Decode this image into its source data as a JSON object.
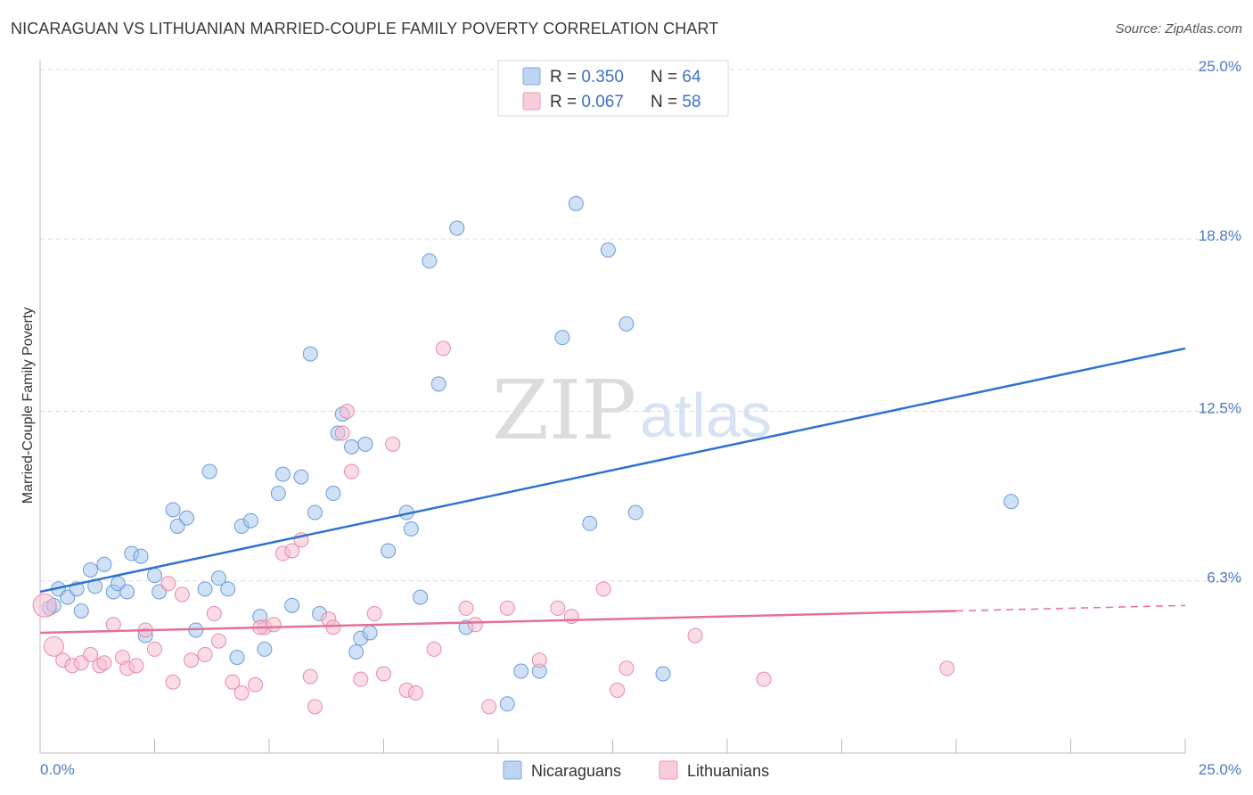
{
  "title": "NICARAGUAN VS LITHUANIAN MARRIED-COUPLE FAMILY POVERTY CORRELATION CHART",
  "source": "Source: ZipAtlas.com",
  "watermark": {
    "zip": "ZIP",
    "atlas": "atlas"
  },
  "chart_data": {
    "type": "scatter",
    "ylabel": "Married-Couple Family Poverty",
    "xlim": [
      0,
      25
    ],
    "ylim": [
      0,
      25
    ],
    "x_tick_labels": [
      "0.0%",
      "25.0%"
    ],
    "y_ticks": [
      6.3,
      12.5,
      18.8,
      25.0
    ],
    "y_tick_labels": [
      "6.3%",
      "12.5%",
      "18.8%",
      "25.0%"
    ],
    "grid": "horizontal dashed",
    "legend_placement": "top-center",
    "stats_legend": [
      {
        "r_label": "R = ",
        "r_value": "0.350",
        "n_label": "N = ",
        "n_value": "64"
      },
      {
        "r_label": "R = ",
        "r_value": "0.067",
        "n_label": "N = ",
        "n_value": "58"
      }
    ],
    "series": [
      {
        "name": "Nicaraguans",
        "color": "#a9c8ee",
        "stroke": "#6b9bd6",
        "line_color": "#2f72d0",
        "trend": {
          "x": [
            0,
            25
          ],
          "y": [
            5.9,
            14.8
          ],
          "dashed_from": null
        },
        "points": [
          [
            0.2,
            5.3
          ],
          [
            0.3,
            5.4
          ],
          [
            0.4,
            6.0
          ],
          [
            0.6,
            5.7
          ],
          [
            0.8,
            6.0
          ],
          [
            0.9,
            5.2
          ],
          [
            1.1,
            6.7
          ],
          [
            1.2,
            6.1
          ],
          [
            1.4,
            6.9
          ],
          [
            1.6,
            5.9
          ],
          [
            1.7,
            6.2
          ],
          [
            1.9,
            5.9
          ],
          [
            2.0,
            7.3
          ],
          [
            2.2,
            7.2
          ],
          [
            2.3,
            4.3
          ],
          [
            2.5,
            6.5
          ],
          [
            2.6,
            5.9
          ],
          [
            2.9,
            8.9
          ],
          [
            3.0,
            8.3
          ],
          [
            3.2,
            8.6
          ],
          [
            3.4,
            4.5
          ],
          [
            3.6,
            6.0
          ],
          [
            3.7,
            10.3
          ],
          [
            3.9,
            6.4
          ],
          [
            4.1,
            6.0
          ],
          [
            4.3,
            3.5
          ],
          [
            4.4,
            8.3
          ],
          [
            4.6,
            8.5
          ],
          [
            4.8,
            5.0
          ],
          [
            4.9,
            3.8
          ],
          [
            5.2,
            9.5
          ],
          [
            5.3,
            10.2
          ],
          [
            5.5,
            5.4
          ],
          [
            5.7,
            10.1
          ],
          [
            5.9,
            14.6
          ],
          [
            6.0,
            8.8
          ],
          [
            6.1,
            5.1
          ],
          [
            6.4,
            9.5
          ],
          [
            6.5,
            11.7
          ],
          [
            6.6,
            12.4
          ],
          [
            6.8,
            11.2
          ],
          [
            6.9,
            3.7
          ],
          [
            7.0,
            4.2
          ],
          [
            7.1,
            11.3
          ],
          [
            7.2,
            4.4
          ],
          [
            7.6,
            7.4
          ],
          [
            8.0,
            8.8
          ],
          [
            8.1,
            8.2
          ],
          [
            8.3,
            5.7
          ],
          [
            8.5,
            18.0
          ],
          [
            8.7,
            13.5
          ],
          [
            9.1,
            19.2
          ],
          [
            9.3,
            4.6
          ],
          [
            10.2,
            1.8
          ],
          [
            10.5,
            3.0
          ],
          [
            10.9,
            3.0
          ],
          [
            11.4,
            15.2
          ],
          [
            11.7,
            20.1
          ],
          [
            12.0,
            8.4
          ],
          [
            12.4,
            18.4
          ],
          [
            12.8,
            15.7
          ],
          [
            13.0,
            8.8
          ],
          [
            13.6,
            2.9
          ],
          [
            21.2,
            9.2
          ]
        ]
      },
      {
        "name": "Lithuanians",
        "color": "#f7bfd0",
        "stroke": "#e68aa8",
        "line_color": "#e4709a",
        "trend": {
          "x": [
            0,
            25
          ],
          "y": [
            4.4,
            5.4
          ],
          "dashed_from": 20.0
        },
        "points": [
          [
            0.1,
            5.4
          ],
          [
            0.3,
            3.9
          ],
          [
            0.5,
            3.4
          ],
          [
            0.7,
            3.2
          ],
          [
            0.9,
            3.3
          ],
          [
            1.1,
            3.6
          ],
          [
            1.3,
            3.2
          ],
          [
            1.4,
            3.3
          ],
          [
            1.6,
            4.7
          ],
          [
            1.8,
            3.5
          ],
          [
            1.9,
            3.1
          ],
          [
            2.1,
            3.2
          ],
          [
            2.3,
            4.5
          ],
          [
            2.5,
            3.8
          ],
          [
            2.8,
            6.2
          ],
          [
            2.9,
            2.6
          ],
          [
            3.1,
            5.8
          ],
          [
            3.3,
            3.4
          ],
          [
            3.6,
            3.6
          ],
          [
            3.8,
            5.1
          ],
          [
            3.9,
            4.1
          ],
          [
            4.2,
            2.6
          ],
          [
            4.4,
            2.2
          ],
          [
            4.7,
            2.5
          ],
          [
            4.9,
            4.6
          ],
          [
            5.1,
            4.7
          ],
          [
            5.3,
            7.3
          ],
          [
            5.5,
            7.4
          ],
          [
            5.7,
            7.8
          ],
          [
            5.9,
            2.8
          ],
          [
            6.0,
            1.7
          ],
          [
            6.3,
            4.9
          ],
          [
            6.4,
            4.6
          ],
          [
            6.7,
            12.5
          ],
          [
            6.8,
            10.3
          ],
          [
            7.0,
            2.7
          ],
          [
            7.3,
            5.1
          ],
          [
            7.5,
            2.9
          ],
          [
            7.7,
            11.3
          ],
          [
            8.0,
            2.3
          ],
          [
            8.2,
            2.2
          ],
          [
            8.6,
            3.8
          ],
          [
            8.8,
            14.8
          ],
          [
            9.3,
            5.3
          ],
          [
            9.5,
            4.7
          ],
          [
            9.8,
            1.7
          ],
          [
            10.2,
            5.3
          ],
          [
            10.9,
            3.4
          ],
          [
            11.3,
            5.3
          ],
          [
            11.6,
            5.0
          ],
          [
            12.3,
            6.0
          ],
          [
            12.6,
            2.3
          ],
          [
            12.8,
            3.1
          ],
          [
            14.3,
            4.3
          ],
          [
            15.8,
            2.7
          ],
          [
            19.8,
            3.1
          ],
          [
            6.6,
            11.7
          ],
          [
            4.8,
            4.6
          ]
        ]
      }
    ]
  }
}
